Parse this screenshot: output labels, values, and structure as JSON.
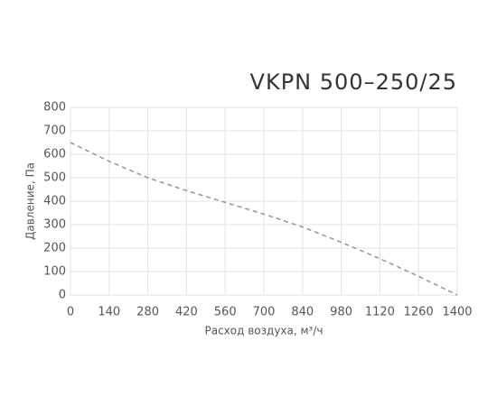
{
  "chart_data": {
    "type": "line",
    "title": "VKPN 500–250/25",
    "x_label": "Расход воздуха, м³/ч",
    "y_label": "Давление, Па",
    "x": [
      0,
      140,
      280,
      420,
      560,
      700,
      840,
      980,
      1120,
      1260,
      1400
    ],
    "series": [
      {
        "name": "VKPN 500–250/25",
        "color": "#9a9a9a",
        "dashed": true,
        "values": [
          650,
          570,
          500,
          445,
          395,
          345,
          290,
          225,
          155,
          80,
          0
        ]
      }
    ],
    "xlim": [
      0,
      1400
    ],
    "xticks": [
      0,
      140,
      280,
      420,
      560,
      700,
      840,
      980,
      1120,
      1260,
      1400
    ],
    "ylim": [
      0,
      800
    ],
    "yticks": [
      0,
      100,
      200,
      300,
      400,
      500,
      600,
      700,
      800
    ],
    "grid": true
  }
}
